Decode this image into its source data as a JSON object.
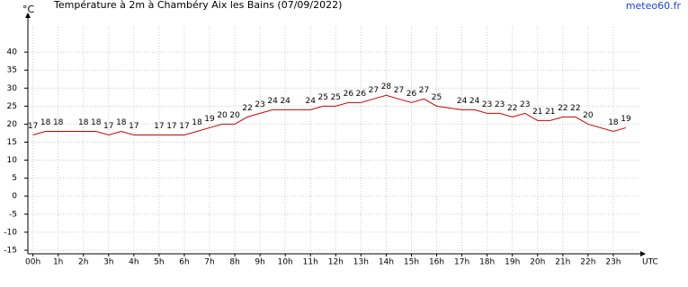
{
  "chart_data": {
    "type": "line",
    "title": "Température à 2m à Chambéry Aix les Bains (07/09/2022)",
    "y_label": "°C",
    "x_label": "UTC",
    "source": "meteo60.fr",
    "x": [
      0,
      0.5,
      1,
      2,
      2.5,
      3,
      3.5,
      4,
      5,
      5.5,
      6,
      6.5,
      7,
      7.5,
      8,
      8.5,
      9,
      9.5,
      10,
      11,
      11.5,
      12,
      12.5,
      13,
      13.5,
      14,
      14.5,
      15,
      15.5,
      16,
      17,
      17.5,
      18,
      18.5,
      19,
      19.5,
      20,
      20.5,
      21,
      21.5,
      22,
      23,
      23.5
    ],
    "series": [
      {
        "name": "Température",
        "color": "#cc0000",
        "values": [
          17,
          18,
          18,
          18,
          18,
          17,
          18,
          17,
          17,
          17,
          17,
          18,
          19,
          20,
          20,
          22,
          23,
          24,
          24,
          24,
          25,
          25,
          26,
          26,
          27,
          28,
          27,
          26,
          27,
          25,
          24,
          24,
          23,
          23,
          22,
          23,
          21,
          21,
          22,
          22,
          20,
          18,
          19
        ]
      }
    ],
    "xlim": [
      -0.2,
      24
    ],
    "ylim": [
      -16,
      47
    ],
    "xticks": [
      {
        "value": 0,
        "label": "00h"
      },
      {
        "value": 1,
        "label": "1h"
      },
      {
        "value": 2,
        "label": "2h"
      },
      {
        "value": 3,
        "label": "3h"
      },
      {
        "value": 4,
        "label": "4h"
      },
      {
        "value": 5,
        "label": "5h"
      },
      {
        "value": 6,
        "label": "6h"
      },
      {
        "value": 7,
        "label": "7h"
      },
      {
        "value": 8,
        "label": "8h"
      },
      {
        "value": 9,
        "label": "9h"
      },
      {
        "value": 10,
        "label": "10h"
      },
      {
        "value": 11,
        "label": "11h"
      },
      {
        "value": 12,
        "label": "12h"
      },
      {
        "value": 13,
        "label": "13h"
      },
      {
        "value": 14,
        "label": "14h"
      },
      {
        "value": 15,
        "label": "15h"
      },
      {
        "value": 16,
        "label": "16h"
      },
      {
        "value": 17,
        "label": "17h"
      },
      {
        "value": 18,
        "label": "18h"
      },
      {
        "value": 19,
        "label": "19h"
      },
      {
        "value": 20,
        "label": "20h"
      },
      {
        "value": 21,
        "label": "21h"
      },
      {
        "value": 22,
        "label": "22h"
      },
      {
        "value": 23,
        "label": "23h"
      }
    ],
    "yticks": [
      40,
      35,
      30,
      25,
      20,
      15,
      10,
      5,
      0,
      -5,
      -10,
      -15
    ],
    "grid": true
  }
}
